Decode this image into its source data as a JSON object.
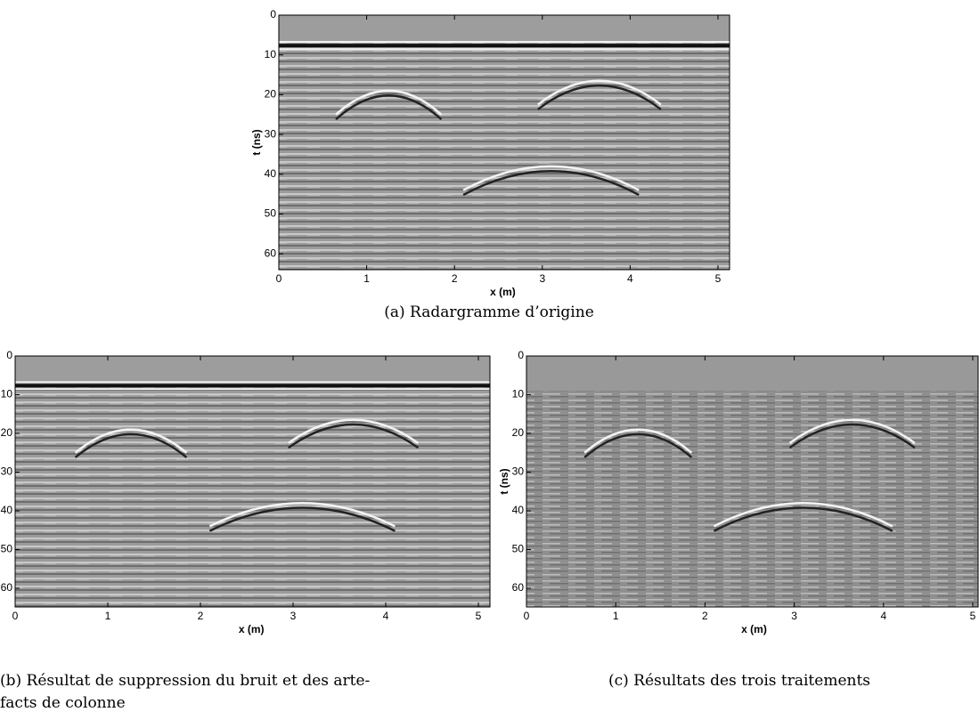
{
  "panels": [
    {
      "caption": [
        "(a) Radargramme d’origine"
      ],
      "x_label": "x (m)",
      "y_label": "t (ns)",
      "x_ticks": [
        0,
        1,
        2,
        3,
        4,
        5
      ],
      "y_ticks": [
        0,
        10,
        20,
        30,
        40,
        50,
        60
      ]
    },
    {
      "caption": [
        "(b) Résultat de suppression du bruit et des arte-",
        "facts de colonne"
      ],
      "x_label": "x (m)",
      "y_label": "t (ns)",
      "x_ticks": [
        0,
        1,
        2,
        3,
        4,
        5
      ],
      "y_ticks": [
        0,
        10,
        20,
        30,
        40,
        50,
        60
      ]
    },
    {
      "caption": [
        "(c) Résultats des trois traitements"
      ],
      "x_label": "x (m)",
      "y_label": "t (ns)",
      "x_ticks": [
        0,
        1,
        2,
        3,
        4,
        5
      ],
      "y_ticks": [
        0,
        10,
        20,
        30,
        40,
        50,
        60
      ]
    }
  ]
}
